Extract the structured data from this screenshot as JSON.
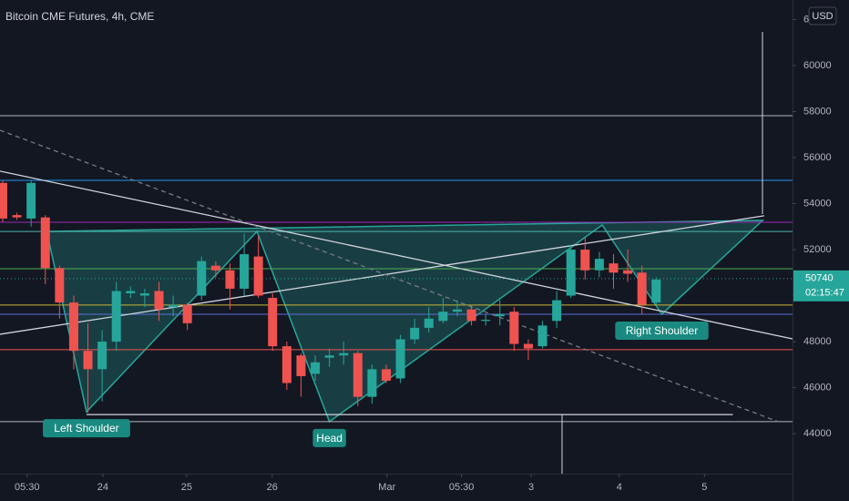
{
  "chart_data": {
    "type": "candlestick",
    "title": "Bitcoin CME Futures, 4h, CME",
    "currency": "USD",
    "up_color": "#26a69a",
    "down_color": "#ef5350",
    "xlim": [
      -0.19,
      55.6
    ],
    "ylim": [
      42260,
      62850
    ],
    "yticks": [
      44000,
      46000,
      48000,
      50000,
      52000,
      54000,
      56000,
      58000,
      60000,
      62000
    ],
    "xticks": [
      {
        "value": 1.72,
        "label": "05:30"
      },
      {
        "value": 7.05,
        "label": "24"
      },
      {
        "value": 12.95,
        "label": "25"
      },
      {
        "value": 18.97,
        "label": "26"
      },
      {
        "value": 27.05,
        "label": "Mar"
      },
      {
        "value": 32.3,
        "label": "05:30"
      },
      {
        "value": 37.2,
        "label": "3"
      },
      {
        "value": 43.4,
        "label": "4"
      },
      {
        "value": 49.4,
        "label": "5"
      }
    ],
    "open": [
      54900,
      53500,
      53350,
      53400,
      51200,
      49700,
      47600,
      46800,
      48000,
      50100,
      50000,
      50200,
      49500,
      49600,
      50000,
      51300,
      51100,
      50300,
      51700,
      49900,
      47800,
      47400,
      46600,
      47300,
      47400,
      47500,
      45600,
      46800,
      46400,
      48100,
      48600,
      48900,
      49300,
      49400,
      48900,
      49100,
      49300,
      47900,
      47800,
      48900,
      50000,
      52000,
      51100,
      51400,
      51100,
      51000,
      49700
    ],
    "high": [
      55000,
      53600,
      55000,
      53500,
      51300,
      50000,
      48800,
      48500,
      50600,
      50400,
      50300,
      50600,
      50000,
      49700,
      51700,
      51500,
      51400,
      52700,
      52600,
      50100,
      48000,
      47500,
      47400,
      47700,
      48000,
      47600,
      47000,
      47000,
      48300,
      49000,
      49500,
      49900,
      49800,
      49600,
      49200,
      49800,
      49500,
      48100,
      48900,
      50200,
      52200,
      52500,
      51900,
      51800,
      52000,
      51300,
      50800
    ],
    "low": [
      53200,
      53300,
      53000,
      50500,
      49000,
      46800,
      44900,
      45400,
      47600,
      49900,
      49500,
      48900,
      49100,
      48500,
      49800,
      50800,
      49400,
      50000,
      49900,
      47600,
      45900,
      45600,
      46300,
      46900,
      47000,
      45200,
      45300,
      46200,
      46200,
      47900,
      48400,
      48800,
      49100,
      48700,
      48700,
      48700,
      47600,
      47200,
      47700,
      48600,
      49900,
      50700,
      50800,
      50300,
      50600,
      49200,
      49600
    ],
    "close": [
      53350,
      53400,
      54900,
      51200,
      49700,
      47600,
      46800,
      48000,
      50200,
      50200,
      50100,
      49400,
      49600,
      48800,
      51500,
      51100,
      50300,
      51800,
      50000,
      47800,
      46200,
      46500,
      47100,
      47400,
      47500,
      45600,
      46800,
      46300,
      48100,
      48600,
      49000,
      49300,
      49400,
      48900,
      48950,
      49200,
      47900,
      47700,
      48700,
      49800,
      52000,
      51100,
      51600,
      51000,
      50950,
      49600,
      50700
    ],
    "levels": [
      {
        "value": 57820,
        "color": "#b2b5be"
      },
      {
        "value": 55010,
        "color": "#2196f3"
      },
      {
        "value": 53190,
        "color": "#9c27b0"
      },
      {
        "value": 52790,
        "color": "#4db6ac"
      },
      {
        "value": 51170,
        "color": "#4caf50"
      },
      {
        "value": 49590,
        "color": "#c8b432"
      },
      {
        "value": 49190,
        "color": "#5b6fd6"
      },
      {
        "value": 47650,
        "color": "#ef5350"
      },
      {
        "value": 44520,
        "color": "#b2b5be"
      }
    ],
    "trendlines": [
      {
        "x": [
          -0.19,
          55.6
        ],
        "y": [
          55410,
          48120
        ],
        "color": "#d1d4dc",
        "dashed": false
      },
      {
        "x": [
          -0.19,
          53.6
        ],
        "y": [
          48320,
          53470
        ],
        "color": "#d1d4dc",
        "dashed": false
      },
      {
        "x": [
          -0.19,
          54.6
        ],
        "y": [
          57190,
          44520
        ],
        "color": "#787b86",
        "dashed": true
      },
      {
        "x": [
          5.9,
          51.4
        ],
        "y": [
          44830,
          44830
        ],
        "color": "#d1d4dc",
        "dashed": false
      }
    ],
    "pattern_x": [
      3.1,
      5.9,
      17.9,
      23.0,
      42.2,
      46.4,
      53.5
    ],
    "pattern_y": [
      52790,
      44950,
      52790,
      44520,
      53070,
      49190,
      53270
    ],
    "annotations": [
      "Left Shoulder",
      "Head",
      "Right Shoulder"
    ],
    "last_price": 50740,
    "countdown": "02:15:47"
  }
}
